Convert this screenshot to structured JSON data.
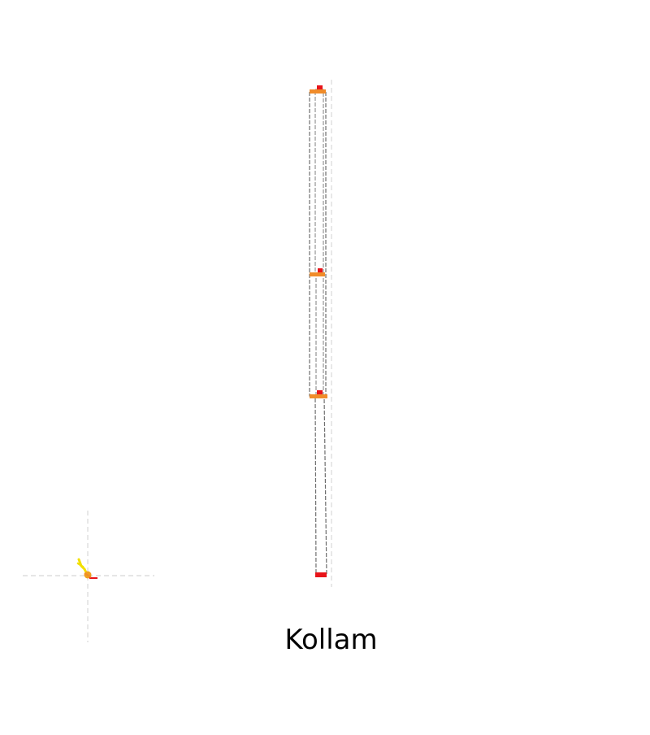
{
  "label": "Kollam"
}
